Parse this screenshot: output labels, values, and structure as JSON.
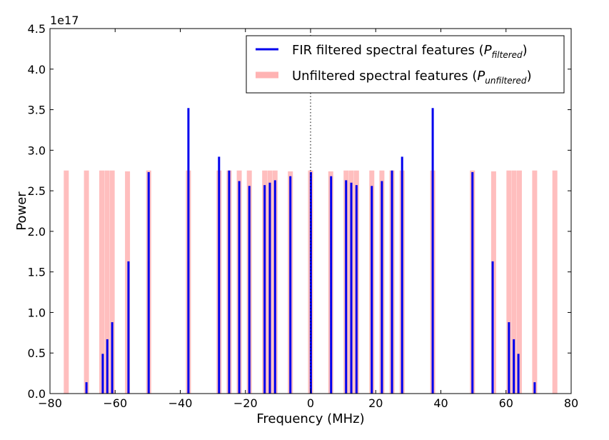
{
  "chart_data": {
    "type": "bar",
    "title": "",
    "xlabel": "Frequency (MHz)",
    "ylabel": "Power",
    "y_multiplier_label": "1e17",
    "xlim": [
      -80,
      80
    ],
    "ylim": [
      0,
      4.5
    ],
    "xticks": [
      -80,
      -60,
      -40,
      -20,
      0,
      20,
      40,
      60,
      80
    ],
    "xtick_labels": [
      "−80",
      "−60",
      "−40",
      "−20",
      "0",
      "20",
      "40",
      "60",
      "80"
    ],
    "yticks": [
      0,
      0.5,
      1.0,
      1.5,
      2.0,
      2.5,
      3.0,
      3.5,
      4.0,
      4.5
    ],
    "ytick_labels": [
      "0.0",
      "0.5",
      "1.0",
      "1.5",
      "2.0",
      "2.5",
      "3.0",
      "3.5",
      "4.0",
      "4.5"
    ],
    "reference_line_x": 0,
    "legend_position": "top-right",
    "colors": {
      "filtered": "#0000ee",
      "unfiltered": "#ffb3b3"
    },
    "series": [
      {
        "name": "FIR filtered spectral features (P_filtered)",
        "legend_text": "FIR filtered spectral features (",
        "legend_symbol": "P",
        "legend_subscript": "filtered",
        "color": "#0000ee",
        "points": [
          {
            "x": -68.8,
            "y": 0.14
          },
          {
            "x": -63.8,
            "y": 0.49
          },
          {
            "x": -62.4,
            "y": 0.67
          },
          {
            "x": -60.9,
            "y": 0.88
          },
          {
            "x": -55.9,
            "y": 1.63
          },
          {
            "x": -49.7,
            "y": 2.73
          },
          {
            "x": -37.5,
            "y": 3.52
          },
          {
            "x": -28.1,
            "y": 2.92
          },
          {
            "x": -25.0,
            "y": 2.75
          },
          {
            "x": -21.9,
            "y": 2.62
          },
          {
            "x": -18.8,
            "y": 2.56
          },
          {
            "x": -14.1,
            "y": 2.57
          },
          {
            "x": -12.5,
            "y": 2.6
          },
          {
            "x": -10.9,
            "y": 2.63
          },
          {
            "x": -6.2,
            "y": 2.68
          },
          {
            "x": 0.1,
            "y": 2.73
          },
          {
            "x": 6.3,
            "y": 2.68
          },
          {
            "x": 10.9,
            "y": 2.63
          },
          {
            "x": 12.5,
            "y": 2.6
          },
          {
            "x": 14.1,
            "y": 2.57
          },
          {
            "x": 18.8,
            "y": 2.56
          },
          {
            "x": 21.9,
            "y": 2.62
          },
          {
            "x": 25.0,
            "y": 2.75
          },
          {
            "x": 28.1,
            "y": 2.92
          },
          {
            "x": 37.5,
            "y": 3.52
          },
          {
            "x": 49.7,
            "y": 2.73
          },
          {
            "x": 55.9,
            "y": 1.63
          },
          {
            "x": 60.9,
            "y": 0.88
          },
          {
            "x": 62.4,
            "y": 0.67
          },
          {
            "x": 63.8,
            "y": 0.49
          },
          {
            "x": 68.8,
            "y": 0.14
          }
        ]
      },
      {
        "name": "Unfiltered spectral features (P_unfiltered)",
        "legend_text": "Unfiltered spectral features (",
        "legend_symbol": "P",
        "legend_subscript": "unfiltered",
        "color": "#ffb3b3",
        "points": [
          {
            "x": -75.0,
            "y": 2.75
          },
          {
            "x": -68.8,
            "y": 2.75
          },
          {
            "x": -64.1,
            "y": 2.75
          },
          {
            "x": -62.5,
            "y": 2.75
          },
          {
            "x": -60.9,
            "y": 2.75
          },
          {
            "x": -56.2,
            "y": 2.74
          },
          {
            "x": -49.7,
            "y": 2.75
          },
          {
            "x": -37.5,
            "y": 2.75
          },
          {
            "x": -28.1,
            "y": 2.75
          },
          {
            "x": -25.0,
            "y": 2.75
          },
          {
            "x": -21.9,
            "y": 2.75
          },
          {
            "x": -18.8,
            "y": 2.75
          },
          {
            "x": -14.1,
            "y": 2.75
          },
          {
            "x": -12.5,
            "y": 2.75
          },
          {
            "x": -10.9,
            "y": 2.75
          },
          {
            "x": -6.2,
            "y": 2.74
          },
          {
            "x": 0.0,
            "y": 2.75
          },
          {
            "x": 6.2,
            "y": 2.74
          },
          {
            "x": 10.9,
            "y": 2.75
          },
          {
            "x": 12.5,
            "y": 2.75
          },
          {
            "x": 14.1,
            "y": 2.75
          },
          {
            "x": 18.8,
            "y": 2.75
          },
          {
            "x": 21.9,
            "y": 2.75
          },
          {
            "x": 25.0,
            "y": 2.75
          },
          {
            "x": 28.1,
            "y": 2.75
          },
          {
            "x": 37.5,
            "y": 2.75
          },
          {
            "x": 49.7,
            "y": 2.75
          },
          {
            "x": 56.2,
            "y": 2.74
          },
          {
            "x": 60.9,
            "y": 2.75
          },
          {
            "x": 62.5,
            "y": 2.75
          },
          {
            "x": 64.1,
            "y": 2.75
          },
          {
            "x": 68.8,
            "y": 2.75
          },
          {
            "x": 75.0,
            "y": 2.75
          }
        ]
      }
    ]
  }
}
